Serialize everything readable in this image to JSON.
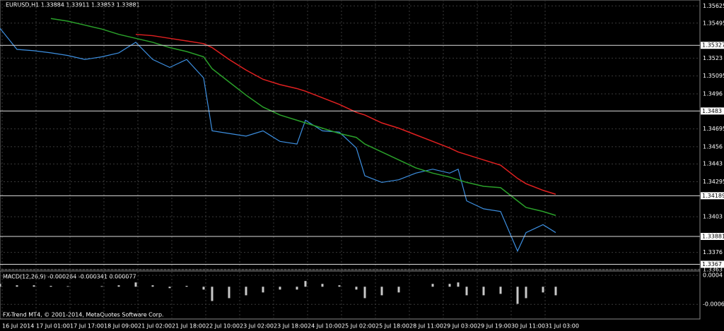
{
  "chart_data": [
    {
      "type": "line",
      "title": "EURUSD,H1  1.33884 1.33911 1.33853 1.33881",
      "x": [
        0,
        8,
        16,
        24,
        32,
        40,
        48,
        56,
        64,
        72,
        80,
        88,
        96,
        100,
        108,
        116,
        124,
        132,
        140,
        144,
        152,
        160,
        168,
        172,
        180,
        188,
        196,
        204,
        212,
        216,
        220,
        228,
        236,
        244,
        248,
        256,
        262
      ],
      "xlim": [
        0,
        330
      ],
      "xticks": [
        {
          "value": 1,
          "label": "16 Jul 2014"
        },
        {
          "value": 17,
          "label": "17 Jul 01:00"
        },
        {
          "value": 33,
          "label": "17 Jul 17:00"
        },
        {
          "value": 49,
          "label": "18 Jul 09:00"
        },
        {
          "value": 65,
          "label": "21 Jul 02:00"
        },
        {
          "value": 81,
          "label": "21 Jul 18:00"
        },
        {
          "value": 97,
          "label": "22 Jul 10:00"
        },
        {
          "value": 113,
          "label": "23 Jul 02:00"
        },
        {
          "value": 129,
          "label": "23 Jul 18:00"
        },
        {
          "value": 145,
          "label": "24 Jul 10:00"
        },
        {
          "value": 161,
          "label": "25 Jul 02:00"
        },
        {
          "value": 177,
          "label": "25 Jul 18:00"
        },
        {
          "value": 193,
          "label": "28 Jul 11:00"
        },
        {
          "value": 209,
          "label": "29 Jul 03:00"
        },
        {
          "value": 225,
          "label": "29 Jul 19:00"
        },
        {
          "value": 241,
          "label": "30 Jul 11:00"
        },
        {
          "value": 257,
          "label": "31 Jul 03:00"
        }
      ],
      "ylim": [
        1.3363,
        1.3567
      ],
      "yticks": [
        1.35625,
        1.35495,
        1.3523,
        1.35095,
        1.3496,
        1.34695,
        1.3456,
        1.3443,
        1.34295,
        1.3403,
        1.3376,
        1.3363
      ],
      "levels": [
        1.35327,
        1.3483,
        1.34189,
        1.33881,
        1.3367
      ],
      "series": [
        {
          "color": "#3d8fe0",
          "values": [
            1.35456,
            1.35296,
            1.35286,
            1.3527,
            1.3525,
            1.3522,
            1.3524,
            1.3527,
            1.3535,
            1.3522,
            1.3516,
            1.3522,
            1.3508,
            1.3468,
            1.3466,
            1.3464,
            1.3468,
            1.346,
            1.3458,
            1.3476,
            1.3468,
            1.3467,
            1.3455,
            1.3434,
            1.3429,
            1.3431,
            1.3436,
            1.3439,
            1.3436,
            1.3439,
            1.3415,
            1.3409,
            1.3407,
            1.3377,
            1.3391,
            1.3397,
            1.3391
          ]
        },
        {
          "color": "#e02020",
          "values": [
            null,
            null,
            null,
            null,
            null,
            null,
            null,
            null,
            1.3541,
            1.354,
            1.3538,
            1.3536,
            1.3534,
            1.3531,
            1.3522,
            1.3514,
            1.3507,
            1.3503,
            1.35,
            1.3498,
            1.3493,
            1.3488,
            1.3482,
            1.348,
            1.3474,
            1.347,
            1.3465,
            1.346,
            1.3455,
            1.3452,
            1.345,
            1.3446,
            1.3442,
            1.3432,
            1.3428,
            1.3423,
            1.342
          ]
        },
        {
          "color": "#2aa02a",
          "values": [
            null,
            null,
            null,
            1.3553,
            1.3551,
            1.3548,
            1.3545,
            1.3541,
            1.3538,
            1.3535,
            1.3531,
            1.3528,
            1.3524,
            1.3515,
            1.3505,
            1.3495,
            1.3486,
            1.348,
            1.3476,
            1.3474,
            1.347,
            1.3466,
            1.3463,
            1.3458,
            1.3452,
            1.3446,
            1.344,
            1.3436,
            1.3433,
            1.3431,
            1.3429,
            1.3426,
            1.3425,
            1.3415,
            1.341,
            1.3407,
            1.3404
          ]
        }
      ]
    },
    {
      "type": "bar",
      "title": "MACD(12,26,9) -0.000264 -0.000341 0.000077",
      "color": "#c8c8c8",
      "x": [
        0,
        8,
        16,
        24,
        32,
        40,
        48,
        56,
        64,
        72,
        80,
        88,
        96,
        100,
        108,
        116,
        124,
        132,
        140,
        144,
        152,
        160,
        168,
        172,
        180,
        188,
        196,
        204,
        212,
        216,
        220,
        228,
        236,
        244,
        248,
        256,
        262
      ],
      "xlim": [
        0,
        330
      ],
      "values": [
        0.0001,
        5e-05,
        5e-05,
        3e-05,
        2e-05,
        0,
        2e-05,
        5e-05,
        0.00015,
        5e-05,
        -5e-05,
        3e-05,
        -0.0001,
        -0.0005,
        -0.0004,
        -0.0003,
        -0.0002,
        -0.0001,
        -0.0001,
        0.0002,
        0.0001,
        5e-05,
        -0.0001,
        -0.0004,
        -0.0003,
        -0.0002,
        0,
        0.0001,
        0.0001,
        0.00015,
        -0.0003,
        -0.0003,
        -0.00025,
        -0.0006,
        -0.0004,
        -0.0002,
        -0.0003
      ],
      "ylim": [
        -0.00113,
        0.00055
      ],
      "yticks": [
        0.0004,
        -0.000616
      ]
    }
  ],
  "footer": "FX-Trend MT4, © 2001-2014, MetaQuotes Software Corp."
}
